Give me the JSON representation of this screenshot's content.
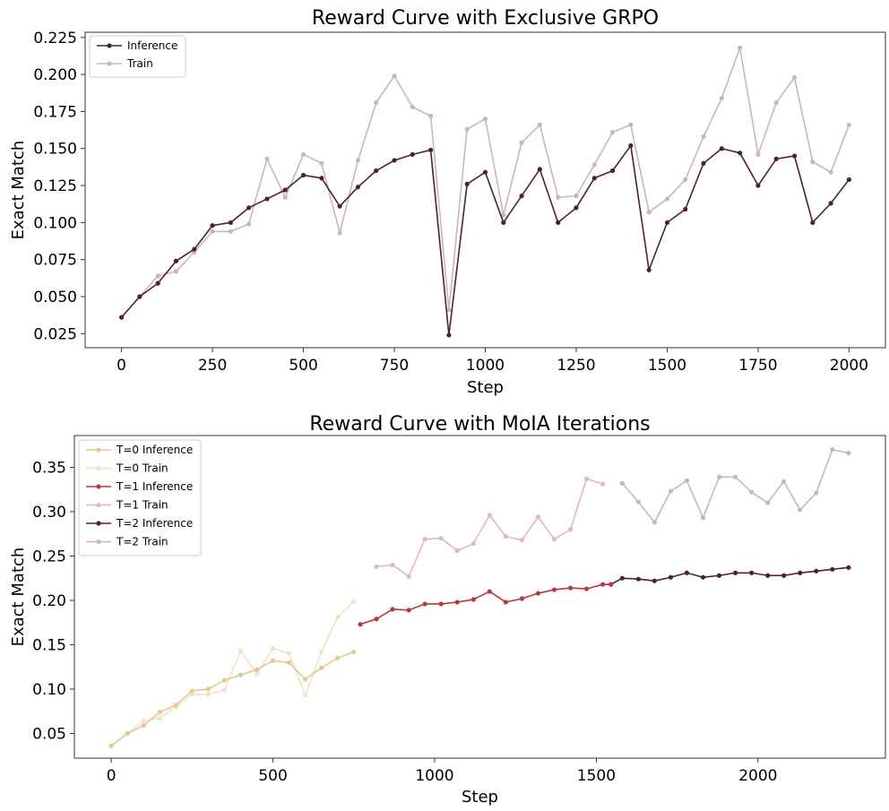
{
  "chart_data": [
    {
      "type": "line",
      "title": "Reward Curve with Exclusive GRPO",
      "xlabel": "Step",
      "ylabel": "Exact Match",
      "xlim": [
        -100,
        2100
      ],
      "ylim": [
        0.0155,
        0.2285
      ],
      "xticks": [
        0,
        250,
        500,
        750,
        1000,
        1250,
        1500,
        1750,
        2000
      ],
      "xtick_labels": [
        "0",
        "250",
        "500",
        "750",
        "1000",
        "1250",
        "1500",
        "1750",
        "2000"
      ],
      "yticks": [
        0.025,
        0.05,
        0.075,
        0.1,
        0.125,
        0.15,
        0.175,
        0.2,
        0.225
      ],
      "ytick_labels": [
        "0.025",
        "0.050",
        "0.075",
        "0.100",
        "0.125",
        "0.150",
        "0.175",
        "0.200",
        "0.225"
      ],
      "legend_position": "top-left",
      "grid": false,
      "series": [
        {
          "name": "Inference",
          "color": "#4f2032",
          "x": [
            0,
            50,
            100,
            150,
            200,
            250,
            300,
            350,
            400,
            450,
            500,
            550,
            600,
            650,
            700,
            750,
            800,
            850,
            900,
            950,
            1000,
            1050,
            1100,
            1150,
            1200,
            1250,
            1300,
            1350,
            1400,
            1450,
            1500,
            1550,
            1600,
            1650,
            1700,
            1750,
            1800,
            1850,
            1900,
            1950,
            2000
          ],
          "y": [
            0.036,
            0.05,
            0.059,
            0.074,
            0.082,
            0.098,
            0.1,
            0.11,
            0.116,
            0.122,
            0.132,
            0.13,
            0.111,
            0.124,
            0.135,
            0.142,
            0.146,
            0.149,
            0.024,
            0.126,
            0.134,
            0.1,
            0.118,
            0.136,
            0.1,
            0.11,
            0.13,
            0.135,
            0.152,
            0.068,
            0.1,
            0.109,
            0.14,
            0.15,
            0.147,
            0.125,
            0.143,
            0.145,
            0.1,
            0.113,
            0.129
          ]
        },
        {
          "name": "Train",
          "color": "#c9b6bc",
          "x": [
            0,
            50,
            100,
            150,
            200,
            250,
            300,
            350,
            400,
            450,
            500,
            550,
            600,
            650,
            700,
            750,
            800,
            850,
            900,
            950,
            1000,
            1050,
            1100,
            1150,
            1200,
            1250,
            1300,
            1350,
            1400,
            1450,
            1500,
            1550,
            1600,
            1650,
            1700,
            1750,
            1800,
            1850,
            1900,
            1950,
            2000
          ],
          "y": [
            0.036,
            0.05,
            0.064,
            0.067,
            0.08,
            0.094,
            0.094,
            0.099,
            0.143,
            0.117,
            0.146,
            0.14,
            0.093,
            0.142,
            0.181,
            0.199,
            0.178,
            0.172,
            0.041,
            0.163,
            0.17,
            0.105,
            0.154,
            0.166,
            0.117,
            0.118,
            0.139,
            0.161,
            0.166,
            0.107,
            0.116,
            0.129,
            0.158,
            0.184,
            0.218,
            0.146,
            0.181,
            0.198,
            0.141,
            0.134,
            0.166
          ]
        }
      ]
    },
    {
      "type": "line",
      "title": "Reward Curve with MoIA Iterations",
      "xlabel": "Step",
      "ylabel": "Exact Match",
      "xlim": [
        -114,
        2394
      ],
      "ylim": [
        0.0222,
        0.3858
      ],
      "xticks": [
        0,
        500,
        1000,
        1500,
        2000
      ],
      "xtick_labels": [
        "0",
        "500",
        "1000",
        "1500",
        "2000"
      ],
      "yticks": [
        0.05,
        0.1,
        0.15,
        0.2,
        0.25,
        0.3,
        0.35
      ],
      "ytick_labels": [
        "0.05",
        "0.10",
        "0.15",
        "0.20",
        "0.25",
        "0.30",
        "0.35"
      ],
      "legend_position": "top-left",
      "grid": false,
      "series": [
        {
          "name": "T=0 Inference",
          "color": "#e6c88f",
          "x": [
            0,
            50,
            100,
            150,
            200,
            250,
            300,
            350,
            400,
            450,
            500,
            550,
            600,
            650,
            700,
            750
          ],
          "y": [
            0.036,
            0.05,
            0.059,
            0.074,
            0.082,
            0.098,
            0.1,
            0.11,
            0.116,
            0.122,
            0.132,
            0.13,
            0.111,
            0.124,
            0.135,
            0.142
          ]
        },
        {
          "name": "T=0 Train",
          "color": "#f2e2c4",
          "x": [
            0,
            50,
            100,
            150,
            200,
            250,
            300,
            350,
            400,
            450,
            500,
            550,
            600,
            650,
            700,
            750
          ],
          "y": [
            0.036,
            0.05,
            0.064,
            0.067,
            0.08,
            0.094,
            0.094,
            0.099,
            0.143,
            0.117,
            0.146,
            0.14,
            0.093,
            0.142,
            0.181,
            0.199
          ]
        },
        {
          "name": "T=1 Inference",
          "color": "#b8383f",
          "x": [
            770,
            820,
            870,
            920,
            970,
            1020,
            1070,
            1120,
            1170,
            1220,
            1270,
            1320,
            1370,
            1420,
            1470,
            1520,
            1545
          ],
          "y": [
            0.173,
            0.179,
            0.19,
            0.189,
            0.196,
            0.196,
            0.198,
            0.201,
            0.21,
            0.198,
            0.202,
            0.208,
            0.212,
            0.214,
            0.213,
            0.218,
            0.218
          ]
        },
        {
          "name": "T=1 Train",
          "color": "#e4b7be",
          "x": [
            820,
            870,
            920,
            970,
            1020,
            1070,
            1120,
            1170,
            1220,
            1270,
            1320,
            1370,
            1420,
            1470,
            1520
          ],
          "y": [
            0.238,
            0.24,
            0.227,
            0.269,
            0.27,
            0.256,
            0.264,
            0.296,
            0.272,
            0.268,
            0.294,
            0.269,
            0.28,
            0.337,
            0.331
          ]
        },
        {
          "name": "T=2 Inference",
          "color": "#4f2032",
          "x": [
            1545,
            1580,
            1630,
            1680,
            1730,
            1780,
            1830,
            1880,
            1930,
            1980,
            2030,
            2080,
            2130,
            2180,
            2230,
            2280
          ],
          "y": [
            0.218,
            0.225,
            0.224,
            0.222,
            0.226,
            0.231,
            0.226,
            0.228,
            0.231,
            0.231,
            0.228,
            0.228,
            0.231,
            0.233,
            0.235,
            0.237
          ]
        },
        {
          "name": "T=2 Train",
          "color": "#c9b6bc",
          "x": [
            1580,
            1630,
            1680,
            1730,
            1780,
            1830,
            1880,
            1930,
            1980,
            2030,
            2080,
            2130,
            2180,
            2230,
            2280
          ],
          "y": [
            0.332,
            0.311,
            0.288,
            0.323,
            0.335,
            0.293,
            0.339,
            0.339,
            0.322,
            0.31,
            0.334,
            0.302,
            0.321,
            0.37,
            0.366
          ]
        }
      ]
    }
  ]
}
